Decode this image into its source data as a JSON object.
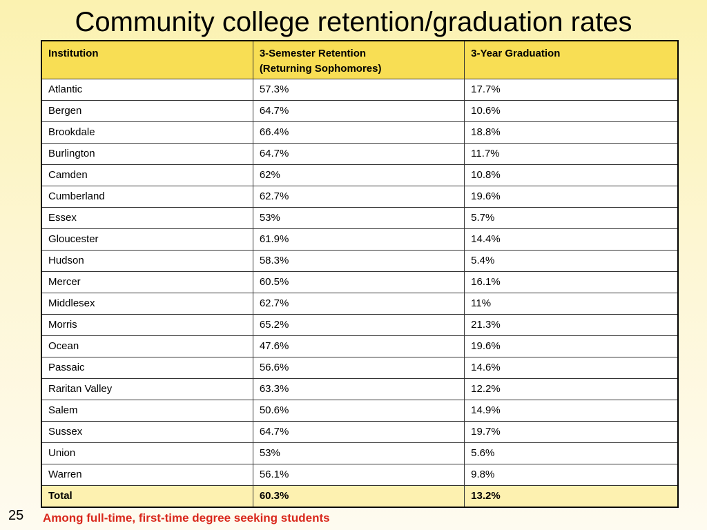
{
  "title": "Community college retention/graduation rates",
  "table": {
    "headers": {
      "institution": "Institution",
      "retention_line1": "3-Semester Retention",
      "retention_line2": "(Returning Sophomores)",
      "graduation": "3-Year Graduation"
    },
    "rows": [
      [
        "Atlantic",
        "57.3%",
        "17.7%"
      ],
      [
        "Bergen",
        "64.7%",
        "10.6%"
      ],
      [
        "Brookdale",
        "66.4%",
        "18.8%"
      ],
      [
        "Burlington",
        "64.7%",
        "11.7%"
      ],
      [
        "Camden",
        "62%",
        "10.8%"
      ],
      [
        "Cumberland",
        "62.7%",
        "19.6%"
      ],
      [
        "Essex",
        "53%",
        "5.7%"
      ],
      [
        "Gloucester",
        "61.9%",
        "14.4%"
      ],
      [
        "Hudson",
        "58.3%",
        "5.4%"
      ],
      [
        "Mercer",
        "60.5%",
        "16.1%"
      ],
      [
        "Middlesex",
        "62.7%",
        "11%"
      ],
      [
        "Morris",
        "65.2%",
        "21.3%"
      ],
      [
        "Ocean",
        "47.6%",
        "19.6%"
      ],
      [
        "Passaic",
        "56.6%",
        "14.6%"
      ],
      [
        "Raritan Valley",
        "63.3%",
        "12.2%"
      ],
      [
        "Salem",
        "50.6%",
        "14.9%"
      ],
      [
        "Sussex",
        "64.7%",
        "19.7%"
      ],
      [
        "Union",
        "53%",
        "5.6%"
      ],
      [
        "Warren",
        "56.1%",
        "9.8%"
      ]
    ],
    "total": [
      "Total",
      "60.3%",
      "13.2%"
    ]
  },
  "page_number": "25",
  "footnote": "Among full-time, first-time degree seeking students",
  "colors": {
    "header_bg": "#f8de54",
    "total_bg": "#fdf1b0",
    "footnote": "#d9281c"
  }
}
